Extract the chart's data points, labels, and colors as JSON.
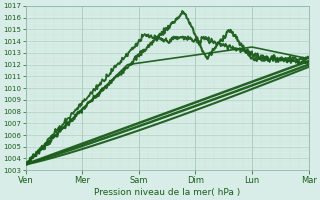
{
  "xlabel": "Pression niveau de la mer( hPa )",
  "bg_color": "#d8ede8",
  "grid_major_color": "#b0d0c0",
  "grid_minor_color": "#c8e4d8",
  "line_color": "#1a5c1a",
  "y_min": 1003,
  "y_max": 1017,
  "x_ticks_labels": [
    "Ven",
    "Mer",
    "Sam",
    "Dim",
    "Lun",
    "Mar"
  ],
  "x_ticks_pos": [
    0,
    1,
    2,
    3,
    4,
    5
  ]
}
